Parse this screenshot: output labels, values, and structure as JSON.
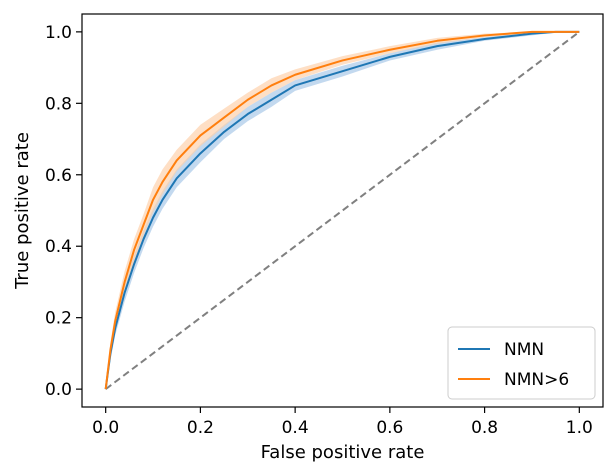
{
  "chart_data": {
    "type": "line",
    "title": "",
    "xlabel": "False positive rate",
    "ylabel": "True positive rate",
    "xlim": [
      -0.05,
      1.05
    ],
    "ylim": [
      -0.05,
      1.05
    ],
    "x_ticks": [
      "0.0",
      "0.2",
      "0.4",
      "0.6",
      "0.8",
      "1.0"
    ],
    "y_ticks": [
      "0.0",
      "0.2",
      "0.4",
      "0.6",
      "0.8",
      "1.0"
    ],
    "grid": false,
    "legend_position": "bottom-right",
    "series": [
      {
        "name": "NMN",
        "color": "#1f77b4",
        "band_color": "#a9c9e8",
        "x": [
          0,
          0.01,
          0.02,
          0.04,
          0.06,
          0.08,
          0.1,
          0.12,
          0.15,
          0.2,
          0.25,
          0.3,
          0.35,
          0.4,
          0.5,
          0.6,
          0.7,
          0.8,
          0.9,
          0.95,
          1.0
        ],
        "y": [
          0,
          0.1,
          0.17,
          0.27,
          0.35,
          0.42,
          0.48,
          0.53,
          0.59,
          0.66,
          0.72,
          0.77,
          0.81,
          0.85,
          0.89,
          0.93,
          0.96,
          0.98,
          0.995,
          1.0,
          1.0
        ],
        "band": [
          0,
          0.02,
          0.02,
          0.025,
          0.025,
          0.025,
          0.025,
          0.025,
          0.025,
          0.025,
          0.02,
          0.02,
          0.02,
          0.015,
          0.015,
          0.01,
          0.01,
          0.005,
          0.005,
          0.002,
          0
        ]
      },
      {
        "name": "NMN>6",
        "color": "#ff7f0e",
        "band_color": "#fdd1ac",
        "x": [
          0,
          0.01,
          0.02,
          0.04,
          0.06,
          0.08,
          0.1,
          0.12,
          0.15,
          0.2,
          0.25,
          0.3,
          0.35,
          0.4,
          0.5,
          0.6,
          0.7,
          0.8,
          0.9,
          0.95,
          1.0
        ],
        "y": [
          0,
          0.11,
          0.19,
          0.3,
          0.39,
          0.46,
          0.53,
          0.58,
          0.64,
          0.71,
          0.76,
          0.81,
          0.85,
          0.88,
          0.92,
          0.95,
          0.975,
          0.99,
          1.0,
          1.0,
          1.0
        ],
        "band": [
          0,
          0.02,
          0.025,
          0.03,
          0.03,
          0.03,
          0.035,
          0.035,
          0.03,
          0.03,
          0.025,
          0.02,
          0.02,
          0.015,
          0.012,
          0.01,
          0.008,
          0.005,
          0.003,
          0.002,
          0
        ]
      }
    ],
    "reference_line": {
      "x": [
        0,
        1
      ],
      "y": [
        0,
        1
      ],
      "color": "#808080",
      "style": "dashed"
    }
  }
}
